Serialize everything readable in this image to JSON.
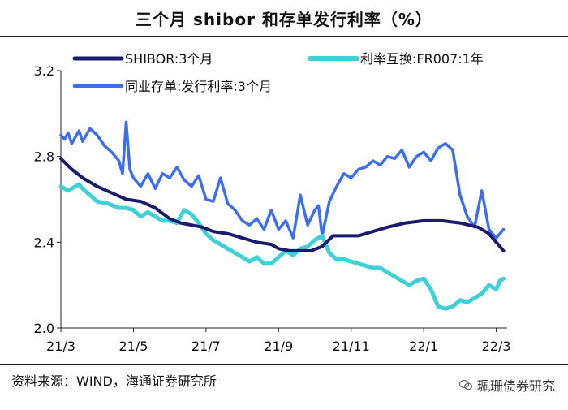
{
  "chart_data": {
    "type": "line",
    "title": "三个月 shibor 和存单发行利率（%）",
    "xlabel": "",
    "ylabel": "",
    "ylim": [
      2.0,
      3.2
    ],
    "yticks": [
      2.0,
      2.4,
      2.8,
      3.2
    ],
    "ytick_labels": [
      "2.0",
      "2.4",
      "2.8",
      "3.2"
    ],
    "xlim": [
      0,
      12.3
    ],
    "xticks": [
      0,
      2,
      4,
      6,
      8,
      10,
      12
    ],
    "xtick_labels": [
      "21/3",
      "21/5",
      "21/7",
      "21/9",
      "21/11",
      "22/1",
      "22/3"
    ],
    "legend_position": "top",
    "series": [
      {
        "name": "SHIBOR:3个月",
        "color": "#1a1a6e",
        "x": [
          0,
          0.3,
          0.6,
          1.0,
          1.4,
          1.8,
          2.2,
          2.6,
          3.0,
          3.3,
          3.6,
          3.9,
          4.2,
          4.6,
          5.0,
          5.4,
          5.8,
          6.0,
          6.3,
          6.6,
          6.9,
          7.2,
          7.5,
          7.8,
          8.2,
          8.6,
          9.0,
          9.5,
          10.0,
          10.5,
          11.0,
          11.5,
          11.8,
          12.0,
          12.2
        ],
        "values": [
          2.79,
          2.74,
          2.7,
          2.66,
          2.63,
          2.6,
          2.59,
          2.56,
          2.51,
          2.49,
          2.48,
          2.47,
          2.45,
          2.44,
          2.42,
          2.4,
          2.39,
          2.37,
          2.36,
          2.36,
          2.36,
          2.38,
          2.43,
          2.43,
          2.43,
          2.45,
          2.47,
          2.49,
          2.5,
          2.5,
          2.49,
          2.47,
          2.44,
          2.4,
          2.36
        ]
      },
      {
        "name": "利率互换:FR007:1年",
        "color": "#3fd0d8",
        "x": [
          0,
          0.2,
          0.4,
          0.5,
          0.6,
          0.8,
          1.0,
          1.3,
          1.6,
          1.8,
          2.0,
          2.2,
          2.4,
          2.6,
          2.8,
          3.0,
          3.2,
          3.4,
          3.6,
          3.8,
          4.0,
          4.2,
          4.4,
          4.6,
          4.8,
          5.0,
          5.2,
          5.4,
          5.6,
          5.8,
          6.0,
          6.2,
          6.4,
          6.6,
          6.8,
          7.0,
          7.2,
          7.4,
          7.6,
          7.8,
          8.0,
          8.2,
          8.4,
          8.6,
          8.8,
          9.0,
          9.2,
          9.4,
          9.6,
          9.8,
          10.0,
          10.2,
          10.4,
          10.6,
          10.8,
          11.0,
          11.2,
          11.4,
          11.6,
          11.8,
          12.0,
          12.1,
          12.2
        ],
        "values": [
          2.66,
          2.64,
          2.66,
          2.67,
          2.65,
          2.62,
          2.59,
          2.58,
          2.56,
          2.56,
          2.55,
          2.52,
          2.54,
          2.52,
          2.5,
          2.5,
          2.49,
          2.55,
          2.53,
          2.49,
          2.44,
          2.41,
          2.39,
          2.37,
          2.35,
          2.33,
          2.31,
          2.33,
          2.3,
          2.3,
          2.33,
          2.36,
          2.34,
          2.37,
          2.38,
          2.41,
          2.43,
          2.35,
          2.32,
          2.32,
          2.31,
          2.3,
          2.29,
          2.28,
          2.28,
          2.26,
          2.24,
          2.22,
          2.2,
          2.22,
          2.23,
          2.18,
          2.1,
          2.09,
          2.1,
          2.13,
          2.12,
          2.14,
          2.16,
          2.2,
          2.18,
          2.22,
          2.23
        ]
      },
      {
        "name": "同业存单:发行利率:3个月",
        "color": "#3d6ef0",
        "x": [
          0,
          0.1,
          0.2,
          0.3,
          0.4,
          0.5,
          0.6,
          0.8,
          1.0,
          1.2,
          1.4,
          1.6,
          1.7,
          1.8,
          1.9,
          2.0,
          2.2,
          2.4,
          2.6,
          2.8,
          3.0,
          3.2,
          3.4,
          3.6,
          3.8,
          4.0,
          4.2,
          4.4,
          4.6,
          4.8,
          5.0,
          5.2,
          5.4,
          5.6,
          5.8,
          6.0,
          6.2,
          6.4,
          6.6,
          6.8,
          7.0,
          7.1,
          7.2,
          7.4,
          7.6,
          7.8,
          8.0,
          8.2,
          8.4,
          8.6,
          8.8,
          9.0,
          9.2,
          9.4,
          9.6,
          9.8,
          10.0,
          10.2,
          10.4,
          10.6,
          10.8,
          11.0,
          11.2,
          11.4,
          11.6,
          11.8,
          12.0,
          12.2
        ],
        "values": [
          2.9,
          2.88,
          2.91,
          2.86,
          2.89,
          2.92,
          2.87,
          2.93,
          2.9,
          2.85,
          2.82,
          2.78,
          2.72,
          2.96,
          2.74,
          2.7,
          2.66,
          2.72,
          2.65,
          2.72,
          2.7,
          2.75,
          2.69,
          2.66,
          2.71,
          2.6,
          2.59,
          2.7,
          2.58,
          2.55,
          2.5,
          2.48,
          2.51,
          2.46,
          2.55,
          2.46,
          2.5,
          2.42,
          2.62,
          2.48,
          2.55,
          2.57,
          2.43,
          2.59,
          2.66,
          2.72,
          2.7,
          2.74,
          2.75,
          2.78,
          2.76,
          2.8,
          2.79,
          2.83,
          2.75,
          2.8,
          2.82,
          2.78,
          2.84,
          2.86,
          2.83,
          2.62,
          2.52,
          2.47,
          2.64,
          2.46,
          2.42,
          2.46
        ]
      }
    ]
  },
  "source": "资料来源：WIND，海通证券研究所",
  "watermark": "珮珊债券研究"
}
